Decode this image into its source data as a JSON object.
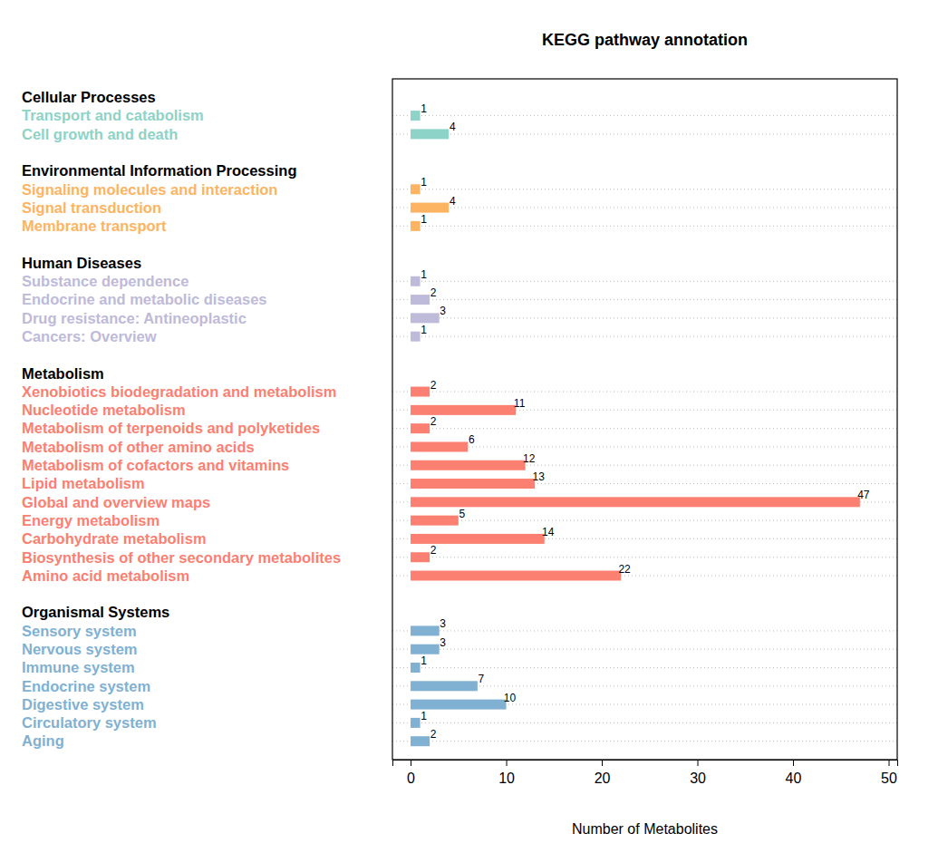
{
  "chart_data": {
    "type": "bar",
    "orientation": "horizontal",
    "title": "KEGG pathway annotation",
    "x_label": "Number of Metabolites",
    "xlim": [
      -1.9,
      50.9
    ],
    "xticks": [
      0,
      10,
      20,
      30,
      40,
      50
    ],
    "grid": true,
    "data_labels": true,
    "groups": [
      {
        "name": "Cellular Processes",
        "color": "#8dd3c7",
        "categories": [
          "Transport and catabolism",
          "Cell growth and death"
        ],
        "values": [
          1,
          4
        ]
      },
      {
        "name": "Environmental Information Processing",
        "color": "#fdb462",
        "categories": [
          "Signaling molecules and interaction",
          "Signal transduction",
          "Membrane transport"
        ],
        "values": [
          1,
          4,
          1
        ]
      },
      {
        "name": "Human Diseases",
        "color": "#bebada",
        "categories": [
          "Substance dependence",
          "Endocrine and metabolic diseases",
          "Drug resistance: Antineoplastic",
          "Cancers: Overview"
        ],
        "values": [
          1,
          2,
          3,
          1
        ]
      },
      {
        "name": "Metabolism",
        "color": "#fb8072",
        "categories": [
          "Xenobiotics biodegradation and metabolism",
          "Nucleotide metabolism",
          "Metabolism of terpenoids and polyketides",
          "Metabolism of other amino acids",
          "Metabolism of cofactors and vitamins",
          "Lipid metabolism",
          "Global and overview maps",
          "Energy metabolism",
          "Carbohydrate metabolism",
          "Biosynthesis of other secondary metabolites",
          "Amino acid metabolism"
        ],
        "values": [
          2,
          11,
          2,
          6,
          12,
          13,
          47,
          5,
          14,
          2,
          22
        ]
      },
      {
        "name": "Organismal Systems",
        "color": "#80b1d3",
        "categories": [
          "Sensory system",
          "Nervous system",
          "Immune system",
          "Endocrine system",
          "Digestive system",
          "Circulatory system",
          "Aging"
        ],
        "values": [
          3,
          3,
          1,
          7,
          10,
          1,
          2
        ]
      }
    ]
  }
}
